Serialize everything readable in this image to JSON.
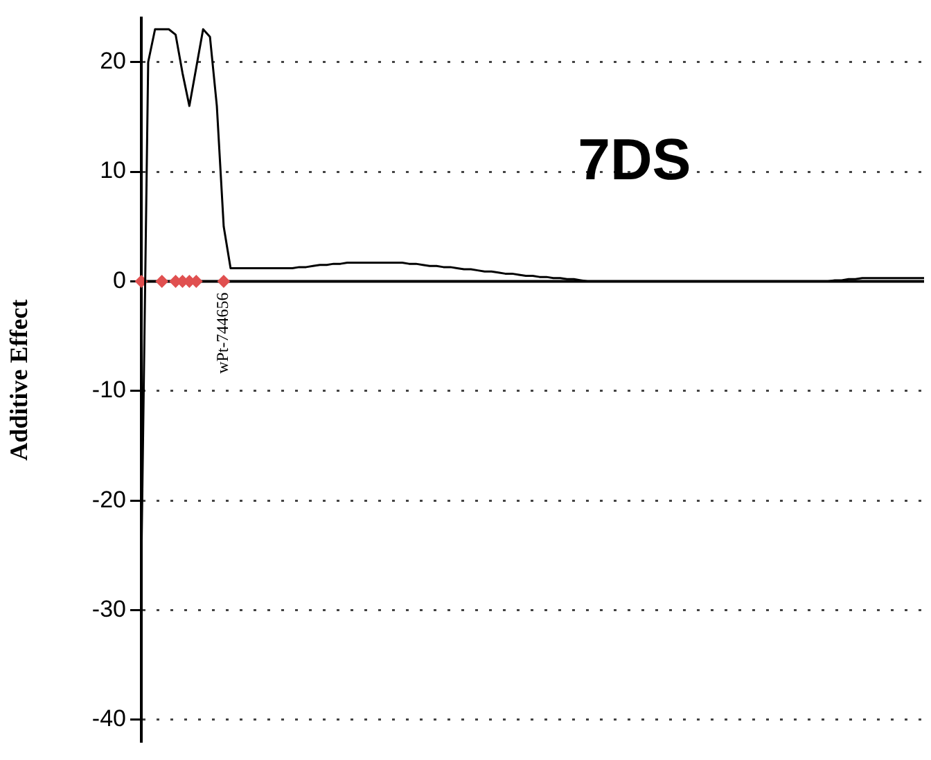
{
  "chart_data": {
    "type": "line",
    "title": "7DS",
    "ylabel": "Additive Effect",
    "grid": "y",
    "line_style": "solid",
    "marker": "none",
    "categories": [
      null,
      null,
      null,
      null,
      null,
      null,
      null,
      null,
      null,
      null,
      null,
      null,
      null,
      null,
      null,
      null,
      null,
      null,
      null,
      null,
      null,
      null,
      null,
      null,
      null,
      null,
      null,
      null,
      null,
      null,
      null,
      null,
      null,
      null,
      null,
      null,
      null,
      null,
      null,
      null,
      null,
      null,
      null,
      null,
      null,
      null,
      null,
      null,
      null,
      null,
      null,
      null,
      null,
      null,
      null,
      null,
      null,
      null,
      null,
      null,
      null,
      null,
      null,
      null,
      null,
      null,
      null,
      null,
      null,
      null,
      null,
      null,
      null,
      null,
      null,
      null,
      null,
      null,
      null,
      null,
      null,
      null,
      null,
      null,
      null,
      null,
      null,
      null,
      null,
      null,
      null,
      null,
      null,
      null,
      null,
      null,
      null,
      null,
      null,
      null,
      null,
      null,
      null,
      null,
      null,
      null,
      null,
      null,
      null,
      null,
      null,
      null,
      null,
      null,
      null
    ],
    "ylim": [
      -42,
      24
    ],
    "yticks": [
      -40,
      -30,
      -20,
      -10,
      0,
      10,
      20
    ],
    "series": [
      {
        "color": "#000000",
        "values": [
          -26,
          20,
          23,
          23,
          23,
          22.5,
          19,
          16,
          19.5,
          23,
          22.3,
          16,
          5,
          1.2,
          1.2,
          1.2,
          1.2,
          1.2,
          1.2,
          1.2,
          1.2,
          1.2,
          1.2,
          1.3,
          1.3,
          1.4,
          1.5,
          1.5,
          1.6,
          1.6,
          1.7,
          1.7,
          1.7,
          1.7,
          1.7,
          1.7,
          1.7,
          1.7,
          1.7,
          1.6,
          1.6,
          1.5,
          1.4,
          1.4,
          1.3,
          1.3,
          1.2,
          1.1,
          1.1,
          1.0,
          0.9,
          0.9,
          0.8,
          0.7,
          0.7,
          0.6,
          0.5,
          0.5,
          0.4,
          0.4,
          0.3,
          0.3,
          0.2,
          0.2,
          0.1,
          0,
          0,
          0,
          0,
          0,
          0,
          0,
          0,
          0,
          0,
          0,
          0,
          0,
          0,
          0,
          0,
          0,
          0,
          0,
          0,
          0,
          0,
          0,
          0,
          0,
          0,
          0,
          0,
          0,
          0,
          0,
          0,
          0,
          0,
          0,
          0,
          0.1,
          0.1,
          0.2,
          0.2,
          0.3,
          0.3,
          0.3,
          0.3,
          0.3,
          0.3,
          0.3,
          0.3,
          0.3,
          0.3
        ]
      },
      {
        "type": "scatter",
        "marker": "diamond",
        "color": "#e05050",
        "values": [
          0,
          null,
          null,
          0,
          null,
          0,
          0,
          0,
          0,
          null,
          null,
          null,
          0,
          null,
          null,
          null,
          null,
          null,
          null,
          null,
          null,
          null,
          null,
          null,
          null,
          null,
          null,
          null,
          null,
          null,
          null,
          null,
          null,
          null,
          null,
          null,
          null,
          null,
          null,
          null,
          null,
          null,
          null,
          null,
          null,
          null,
          null,
          null,
          null,
          null,
          null,
          null,
          null,
          null,
          null,
          null,
          null,
          null,
          null,
          null,
          null,
          null,
          null,
          null,
          null,
          null,
          null,
          null,
          null,
          null,
          null,
          null,
          null,
          null,
          null,
          null,
          null,
          null,
          null,
          null,
          null,
          null,
          null,
          null,
          null,
          null,
          null,
          null,
          null,
          null,
          null,
          null,
          null,
          null,
          null,
          null,
          null,
          null,
          null,
          null,
          null,
          null,
          null,
          null,
          null,
          null,
          null,
          null,
          null,
          null,
          null,
          null,
          null,
          null,
          null
        ]
      }
    ],
    "ref_lines": [
      {
        "axis": "y",
        "value": 0,
        "color": "#000000",
        "line_style": "solid"
      }
    ],
    "annotations": [
      "wPt-744656"
    ]
  }
}
